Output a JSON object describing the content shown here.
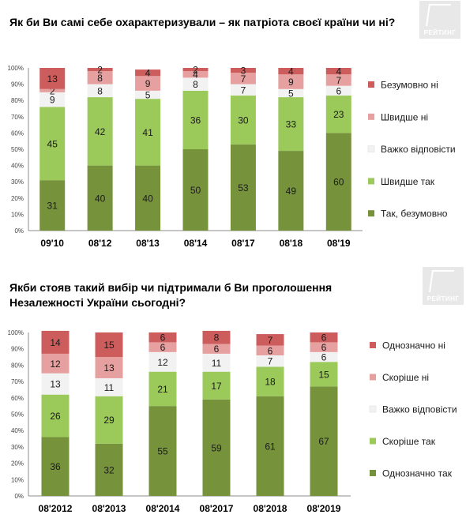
{
  "logo_text": "РЕЙТИНГ",
  "chart_data": [
    {
      "type": "bar",
      "stacked": true,
      "title": "Як  би Ви самі себе охарактеризували – як патріота своєї країни чи ні?",
      "categories": [
        "09'10",
        "08'12",
        "08'13",
        "08'14",
        "08'17",
        "08'18",
        "08'19"
      ],
      "ylim": [
        0,
        100
      ],
      "y_ticks": [
        "0%",
        "10%",
        "20%",
        "30%",
        "40%",
        "50%",
        "60%",
        "70%",
        "80%",
        "90%",
        "100%"
      ],
      "grid": false,
      "legend_position": "right",
      "series": [
        {
          "name": "Так, безумовно",
          "color": "#76933c",
          "values": [
            31,
            40,
            40,
            50,
            53,
            49,
            60
          ]
        },
        {
          "name": "Швидше так",
          "color": "#9bc95a",
          "values": [
            45,
            42,
            41,
            36,
            30,
            33,
            23
          ]
        },
        {
          "name": "Важко відповісти",
          "color": "#f2f2f2",
          "values": [
            9,
            8,
            5,
            8,
            7,
            5,
            6
          ]
        },
        {
          "name": "Швидше ні",
          "color": "#e6a0a0",
          "values": [
            2,
            8,
            9,
            4,
            7,
            9,
            7
          ]
        },
        {
          "name": "Безумовно ні",
          "color": "#cd5c5c",
          "values": [
            13,
            2,
            4,
            2,
            3,
            4,
            4
          ]
        }
      ],
      "labels": [
        [
          "31",
          "45",
          "9",
          "2",
          "13"
        ],
        [
          "40",
          "42",
          "8",
          "8",
          "2"
        ],
        [
          "40",
          "41",
          "5",
          "9",
          "4"
        ],
        [
          "50",
          "36",
          "8",
          "4",
          "2"
        ],
        [
          "53",
          "30",
          "7",
          "7",
          "3"
        ],
        [
          "49",
          "33",
          "5",
          "9",
          "4"
        ],
        [
          "60",
          "23",
          "6",
          "7",
          "4"
        ]
      ]
    },
    {
      "type": "bar",
      "stacked": true,
      "title": "Якби стояв такий вибір чи підтримали б Ви проголошення Незалежності України сьогодні?",
      "categories": [
        "08'2012",
        "08'2013",
        "08'2014",
        "08'2017",
        "08'2018",
        "08'2019"
      ],
      "ylim": [
        0,
        100
      ],
      "y_ticks": [
        "0%",
        "10%",
        "20%",
        "30%",
        "40%",
        "50%",
        "60%",
        "70%",
        "80%",
        "90%",
        "100%"
      ],
      "grid": false,
      "legend_position": "right",
      "series": [
        {
          "name": "Однозначно так",
          "color": "#76933c",
          "values": [
            36,
            32,
            55,
            59,
            61,
            67
          ]
        },
        {
          "name": "Скоріше так",
          "color": "#9bc95a",
          "values": [
            26,
            29,
            21,
            17,
            18,
            15
          ]
        },
        {
          "name": "Важко відповісти",
          "color": "#f2f2f2",
          "values": [
            13,
            11,
            12,
            11,
            7,
            6
          ]
        },
        {
          "name": "Скоріше ні",
          "color": "#e6a0a0",
          "values": [
            12,
            13,
            6,
            6,
            6,
            6
          ]
        },
        {
          "name": "Однозначно ні",
          "color": "#cd5c5c",
          "values": [
            14,
            15,
            6,
            8,
            7,
            6
          ]
        }
      ],
      "labels": [
        [
          "36",
          "26",
          "13",
          "12",
          "14"
        ],
        [
          "32",
          "29",
          "11",
          "13",
          "15"
        ],
        [
          "55",
          "21",
          "12",
          "6",
          "6"
        ],
        [
          "59",
          "17",
          "11",
          "6",
          "8"
        ],
        [
          "61",
          "18",
          "7",
          "6",
          "7"
        ],
        [
          "67",
          "15",
          "6",
          "6",
          "6"
        ]
      ]
    }
  ]
}
